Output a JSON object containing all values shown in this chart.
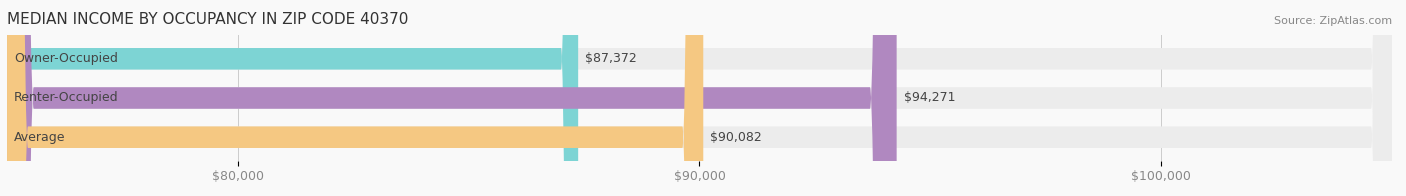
{
  "title": "MEDIAN INCOME BY OCCUPANCY IN ZIP CODE 40370",
  "source": "Source: ZipAtlas.com",
  "categories": [
    "Owner-Occupied",
    "Renter-Occupied",
    "Average"
  ],
  "values": [
    87372,
    94271,
    90082
  ],
  "bar_colors": [
    "#7dd4d4",
    "#b088c0",
    "#f5c882"
  ],
  "track_color": "#ececec",
  "value_labels": [
    "$87,372",
    "$94,271",
    "$90,082"
  ],
  "xlim_min": 75000,
  "xlim_max": 105000,
  "xtick_values": [
    80000,
    90000,
    100000
  ],
  "xtick_labels": [
    "$80,000",
    "$90,000",
    "$100,000"
  ],
  "bar_height": 0.55,
  "background_color": "#f9f9f9",
  "title_fontsize": 11,
  "label_fontsize": 9,
  "value_fontsize": 9,
  "tick_fontsize": 9
}
